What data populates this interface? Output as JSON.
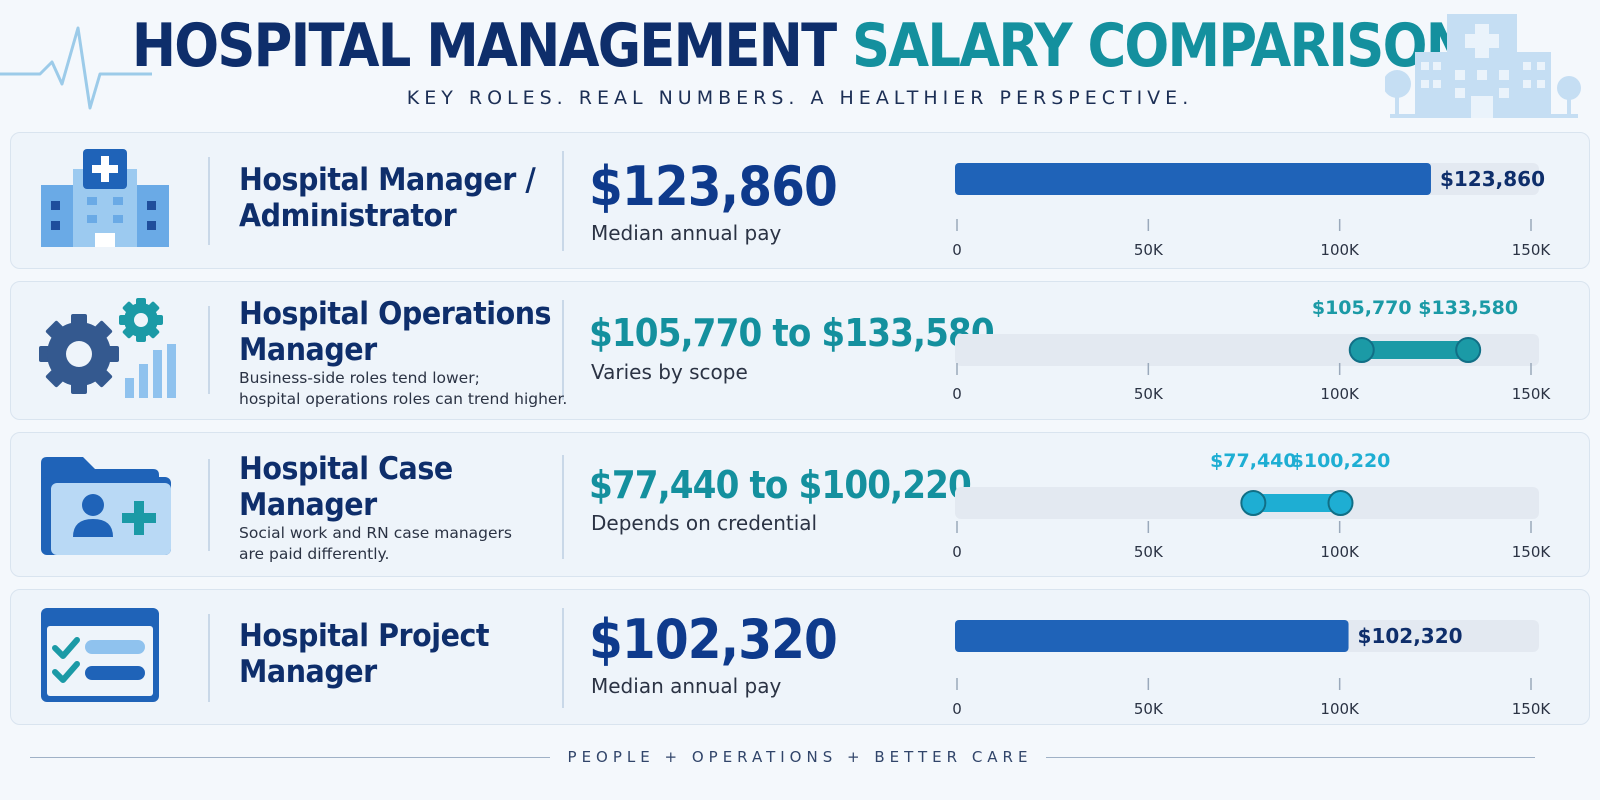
{
  "header": {
    "title_part1": "HOSPITAL MANAGEMENT",
    "title_part2": "SALARY COMPARISON",
    "subtitle": "KEY ROLES. REAL NUMBERS. A HEALTHIER PERSPECTIVE."
  },
  "colors": {
    "navy": "#0e2e6b",
    "teal": "#14909e",
    "bar_blue": "#1f63b8",
    "range_teal": "#1b9aa6",
    "range_cyan": "#1eaed3",
    "track": "#e3e9f1"
  },
  "cards": [
    {
      "icon": "hospital-building-icon",
      "role_line1": "Hospital Manager /",
      "role_line2": "Administrator",
      "note_line1": "",
      "note_line2": "",
      "value": "$123,860",
      "sublabel": "Median annual pay"
    },
    {
      "icon": "gear-chart-icon",
      "role_line1": "Hospital Operations",
      "role_line2": "Manager",
      "note_line1": "Business-side roles tend lower;",
      "note_line2": "hospital operations roles can trend higher.",
      "value": "$105,770 to $133,580",
      "sublabel": "Varies by scope"
    },
    {
      "icon": "folder-add-person-icon",
      "role_line1": "Hospital Case",
      "role_line2": "Manager",
      "note_line1": "Social work and RN case managers",
      "note_line2": "are paid differently.",
      "value": "$77,440 to $100,220",
      "sublabel": "Depends on credential"
    },
    {
      "icon": "checklist-window-icon",
      "role_line1": "Hospital Project",
      "role_line2": "Manager",
      "note_line1": "",
      "note_line2": "",
      "value": "$102,320",
      "sublabel": "Median annual pay"
    }
  ],
  "chart_data": [
    {
      "type": "bar",
      "orientation": "horizontal",
      "categories": [
        "Hospital Manager / Administrator"
      ],
      "values": [
        123860
      ],
      "value_label": "$123,860",
      "xlim": [
        0,
        150000
      ],
      "tick_values": [
        0,
        50000,
        100000,
        150000
      ],
      "tick_labels": [
        "0",
        "50K",
        "100K",
        "150K"
      ]
    },
    {
      "type": "range",
      "categories": [
        "Hospital Operations Manager"
      ],
      "low": 105770,
      "high": 133580,
      "low_label": "$105,770",
      "high_label": "$133,580",
      "xlim": [
        0,
        150000
      ],
      "tick_values": [
        0,
        50000,
        100000,
        150000
      ],
      "tick_labels": [
        "0",
        "50K",
        "100K",
        "150K"
      ]
    },
    {
      "type": "range",
      "categories": [
        "Hospital Case Manager"
      ],
      "low": 77440,
      "high": 100220,
      "low_label": "$77,440",
      "high_label": "$100,220",
      "xlim": [
        0,
        150000
      ],
      "tick_values": [
        0,
        50000,
        100000,
        150000
      ],
      "tick_labels": [
        "0",
        "50K",
        "100K",
        "150K"
      ]
    },
    {
      "type": "bar",
      "orientation": "horizontal",
      "categories": [
        "Hospital Project Manager"
      ],
      "values": [
        102320
      ],
      "value_label": "$102,320",
      "xlim": [
        0,
        150000
      ],
      "tick_values": [
        0,
        50000,
        100000,
        150000
      ],
      "tick_labels": [
        "0",
        "50K",
        "100K",
        "150K"
      ]
    }
  ],
  "footer": {
    "text": "PEOPLE + OPERATIONS + BETTER CARE"
  }
}
